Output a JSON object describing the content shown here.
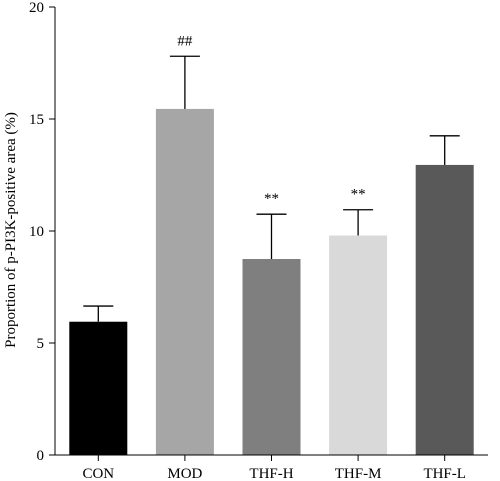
{
  "chart_data": {
    "type": "bar",
    "title": "",
    "xlabel": "",
    "ylabel": "Proportion of p-PI3K-positive area (%)",
    "ylim": [
      0,
      20
    ],
    "yticks": [
      0,
      5,
      10,
      15,
      20
    ],
    "grid": false,
    "legend": "none",
    "categories": [
      "CON",
      "MOD",
      "THF-H",
      "THF-M",
      "THF-L"
    ],
    "values": [
      5.95,
      15.45,
      8.75,
      9.8,
      12.95
    ],
    "errors": [
      0.7,
      2.35,
      2.0,
      1.15,
      1.3
    ],
    "annotations": [
      "",
      "##",
      "**",
      "**",
      ""
    ],
    "colors": [
      "#000000",
      "#a6a6a6",
      "#7f7f7f",
      "#d9d9d9",
      "#595959"
    ]
  }
}
